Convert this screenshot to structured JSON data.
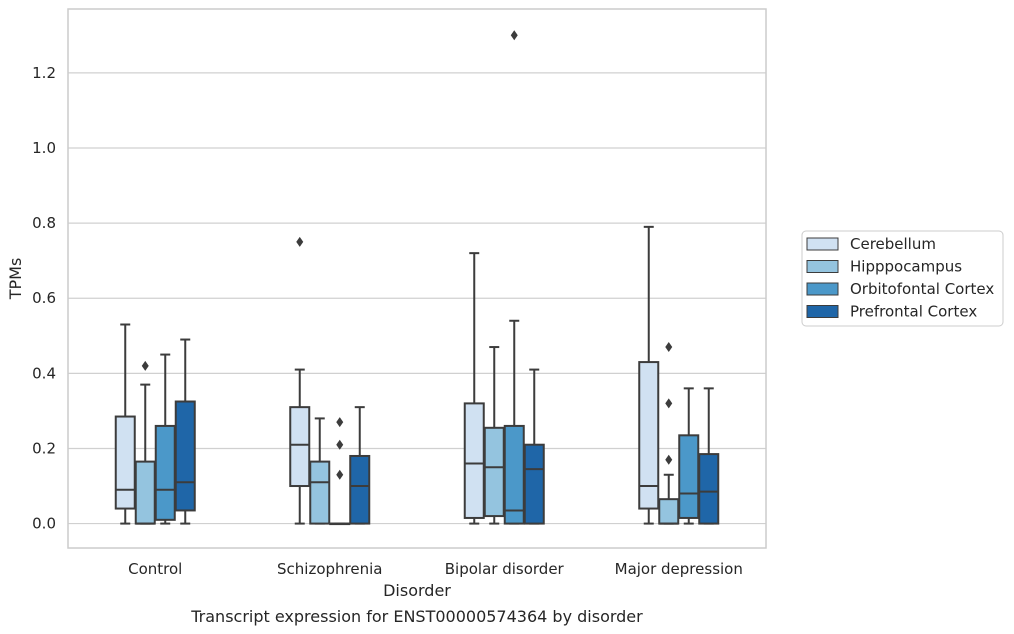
{
  "chart_data": {
    "type": "box",
    "title": "",
    "caption": "Transcript expression for ENST00000574364 by disorder",
    "xlabel": "Disorder",
    "ylabel": "TPMs",
    "ylim": [
      -0.065,
      1.37
    ],
    "yticks": [
      "0.0",
      "0.2",
      "0.4",
      "0.6",
      "0.8",
      "1.0",
      "1.2"
    ],
    "grid": true,
    "legend_position": "right",
    "categories": [
      "Control",
      "Schizophrenia",
      "Bipolar disorder",
      "Major depression"
    ],
    "series": [
      {
        "name": "Cerebellum",
        "color": "#d0e1f2",
        "boxes": [
          {
            "whislo": 0.0,
            "q1": 0.04,
            "med": 0.09,
            "q3": 0.285,
            "whishi": 0.53,
            "fliers": []
          },
          {
            "whislo": 0.0,
            "q1": 0.1,
            "med": 0.21,
            "q3": 0.31,
            "whishi": 0.41,
            "fliers": [
              0.75
            ]
          },
          {
            "whislo": 0.0,
            "q1": 0.015,
            "med": 0.16,
            "q3": 0.32,
            "whishi": 0.72,
            "fliers": []
          },
          {
            "whislo": 0.0,
            "q1": 0.04,
            "med": 0.1,
            "q3": 0.43,
            "whishi": 0.79,
            "fliers": []
          }
        ]
      },
      {
        "name": "Hipppocampus",
        "color": "#94c4df",
        "boxes": [
          {
            "whislo": 0.0,
            "q1": 0.0,
            "med": 0.0,
            "q3": 0.165,
            "whishi": 0.37,
            "fliers": [
              0.42
            ]
          },
          {
            "whislo": 0.0,
            "q1": 0.0,
            "med": 0.11,
            "q3": 0.165,
            "whishi": 0.28,
            "fliers": []
          },
          {
            "whislo": 0.0,
            "q1": 0.02,
            "med": 0.15,
            "q3": 0.255,
            "whishi": 0.47,
            "fliers": []
          },
          {
            "whislo": 0.0,
            "q1": 0.0,
            "med": 0.0,
            "q3": 0.065,
            "whishi": 0.13,
            "fliers": [
              0.17,
              0.32,
              0.47
            ]
          }
        ]
      },
      {
        "name": "Orbitofontal Cortex",
        "color": "#4b98c9",
        "boxes": [
          {
            "whislo": 0.0,
            "q1": 0.01,
            "med": 0.09,
            "q3": 0.26,
            "whishi": 0.45,
            "fliers": []
          },
          {
            "whislo": 0.0,
            "q1": 0.0,
            "med": 0.0,
            "q3": 0.0,
            "whishi": 0.0,
            "fliers": [
              0.13,
              0.21,
              0.27
            ]
          },
          {
            "whislo": 0.0,
            "q1": 0.0,
            "med": 0.035,
            "q3": 0.26,
            "whishi": 0.54,
            "fliers": [
              1.3
            ]
          },
          {
            "whislo": 0.0,
            "q1": 0.015,
            "med": 0.08,
            "q3": 0.235,
            "whishi": 0.36,
            "fliers": []
          }
        ]
      },
      {
        "name": "Prefrontal Cortex",
        "color": "#1f66a8",
        "boxes": [
          {
            "whislo": 0.0,
            "q1": 0.035,
            "med": 0.11,
            "q3": 0.325,
            "whishi": 0.49,
            "fliers": []
          },
          {
            "whislo": 0.0,
            "q1": 0.0,
            "med": 0.1,
            "q3": 0.18,
            "whishi": 0.31,
            "fliers": []
          },
          {
            "whislo": 0.0,
            "q1": 0.0,
            "med": 0.145,
            "q3": 0.21,
            "whishi": 0.41,
            "fliers": []
          },
          {
            "whislo": 0.0,
            "q1": 0.0,
            "med": 0.085,
            "q3": 0.185,
            "whishi": 0.36,
            "fliers": []
          }
        ]
      }
    ]
  }
}
